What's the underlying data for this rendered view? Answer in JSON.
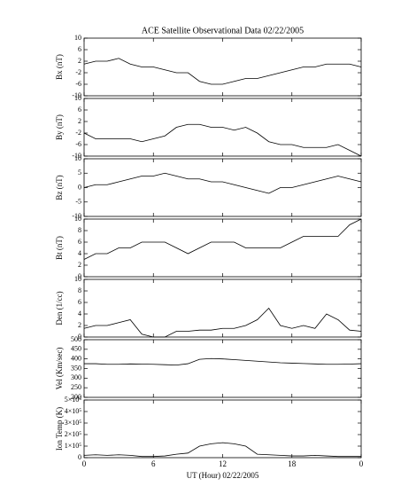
{
  "chart_data": [
    {
      "type": "line",
      "title": "ACE Satellite Observational Data   02/22/2005",
      "ylabel": "Bx (nT)",
      "x": [
        0,
        1,
        2,
        3,
        4,
        5,
        6,
        7,
        8,
        9,
        10,
        11,
        12,
        13,
        14,
        15,
        16,
        17,
        18,
        19,
        20,
        21,
        22,
        23,
        24
      ],
      "values": [
        1,
        2,
        2,
        3,
        1,
        0,
        0,
        -1,
        -2,
        -2,
        -5,
        -6,
        -6,
        -5,
        -4,
        -4,
        -3,
        -2,
        -1,
        0,
        0,
        1,
        1,
        1,
        0
      ],
      "xlim": [
        0,
        24
      ],
      "ylim": [
        -10,
        10
      ],
      "yticks": [
        -10,
        -6,
        -2,
        2,
        6,
        10
      ],
      "color": "#000000"
    },
    {
      "type": "line",
      "ylabel": "By (nT)",
      "x": [
        0,
        1,
        2,
        3,
        4,
        5,
        6,
        7,
        8,
        9,
        10,
        11,
        12,
        13,
        14,
        15,
        16,
        17,
        18,
        19,
        20,
        21,
        22,
        23,
        24
      ],
      "values": [
        -2,
        -4,
        -4,
        -4,
        -4,
        -5,
        -4,
        -3,
        0,
        1,
        1,
        0,
        0,
        -1,
        0,
        -2,
        -5,
        -6,
        -6,
        -7,
        -7,
        -7,
        -6,
        -8,
        -10
      ],
      "xlim": [
        0,
        24
      ],
      "ylim": [
        -10,
        10
      ],
      "yticks": [
        -10,
        -6,
        -2,
        2,
        6,
        10
      ],
      "color": "#000000"
    },
    {
      "type": "line",
      "ylabel": "Bz (nT)",
      "x": [
        0,
        1,
        2,
        3,
        4,
        5,
        6,
        7,
        8,
        9,
        10,
        11,
        12,
        13,
        14,
        15,
        16,
        17,
        18,
        19,
        20,
        21,
        22,
        23,
        24
      ],
      "values": [
        0,
        1,
        1,
        2,
        3,
        4,
        4,
        5,
        4,
        3,
        3,
        2,
        2,
        1,
        0,
        -1,
        -2,
        0,
        0,
        1,
        2,
        3,
        4,
        3,
        2
      ],
      "xlim": [
        0,
        24
      ],
      "ylim": [
        -10,
        10
      ],
      "yticks": [
        -10,
        -5,
        0,
        5,
        10
      ],
      "color": "#000000"
    },
    {
      "type": "line",
      "ylabel": "Bt (nT)",
      "x": [
        0,
        1,
        2,
        3,
        4,
        5,
        6,
        7,
        8,
        9,
        10,
        11,
        12,
        13,
        14,
        15,
        16,
        17,
        18,
        19,
        20,
        21,
        22,
        23,
        24
      ],
      "values": [
        3,
        4,
        4,
        5,
        5,
        6,
        6,
        6,
        5,
        4,
        5,
        6,
        6,
        6,
        5,
        5,
        5,
        5,
        6,
        7,
        7,
        7,
        7,
        9,
        10
      ],
      "xlim": [
        0,
        24
      ],
      "ylim": [
        0,
        10
      ],
      "yticks": [
        0,
        2,
        4,
        6,
        8,
        10
      ],
      "color": "#000000"
    },
    {
      "type": "line",
      "ylabel": "Den (1/cc)",
      "x": [
        0,
        1,
        2,
        3,
        4,
        5,
        6,
        7,
        8,
        9,
        10,
        11,
        12,
        13,
        14,
        15,
        16,
        17,
        18,
        19,
        20,
        21,
        22,
        23,
        24
      ],
      "values": [
        1.5,
        2,
        2,
        2.5,
        3,
        0.5,
        0,
        0,
        1,
        1,
        1.2,
        1.2,
        1.5,
        1.5,
        2,
        3,
        5,
        2,
        1.5,
        2,
        1.5,
        4,
        3,
        1.2,
        1
      ],
      "xlim": [
        0,
        24
      ],
      "ylim": [
        0,
        10
      ],
      "yticks": [
        0,
        2,
        4,
        6,
        8,
        10
      ],
      "color": "#000000"
    },
    {
      "type": "line",
      "ylabel": "Vel (Km/sec)",
      "x": [
        0,
        1,
        2,
        3,
        4,
        5,
        6,
        7,
        8,
        9,
        10,
        11,
        12,
        13,
        14,
        15,
        16,
        17,
        18,
        19,
        20,
        21,
        22,
        23,
        24
      ],
      "values": [
        375,
        375,
        372,
        372,
        374,
        373,
        372,
        370,
        368,
        375,
        398,
        402,
        400,
        396,
        392,
        388,
        384,
        380,
        378,
        376,
        374,
        372,
        372,
        373,
        375
      ],
      "xlim": [
        0,
        24
      ],
      "ylim": [
        200,
        500
      ],
      "yticks": [
        200,
        250,
        300,
        350,
        400,
        450,
        500
      ],
      "color": "#000000"
    },
    {
      "type": "line",
      "ylabel": "Ion Temp (K)",
      "xlabel": "UT (Hour)  02/22/2005",
      "x": [
        0,
        1,
        2,
        3,
        4,
        5,
        6,
        7,
        8,
        9,
        10,
        11,
        12,
        13,
        14,
        15,
        16,
        17,
        18,
        19,
        20,
        21,
        22,
        23,
        24
      ],
      "values": [
        20000,
        25000,
        20000,
        25000,
        20000,
        10000,
        10000,
        15000,
        30000,
        40000,
        100000,
        120000,
        130000,
        120000,
        100000,
        30000,
        25000,
        20000,
        15000,
        15000,
        20000,
        15000,
        10000,
        10000,
        10000
      ],
      "xlim": [
        0,
        24
      ],
      "ylim": [
        0,
        500000
      ],
      "yticks": [
        0,
        {
          "value": 100000,
          "label": "1×10⁵"
        },
        {
          "value": 200000,
          "label": "2×10⁵"
        },
        {
          "value": 300000,
          "label": "3×10⁵"
        },
        {
          "value": 400000,
          "label": "4×10⁵"
        },
        {
          "value": 500000,
          "label": "5×10⁵"
        }
      ],
      "xticks": [
        0,
        6,
        12,
        18,
        {
          "value": 24,
          "label": "0"
        }
      ],
      "color": "#000000"
    }
  ]
}
